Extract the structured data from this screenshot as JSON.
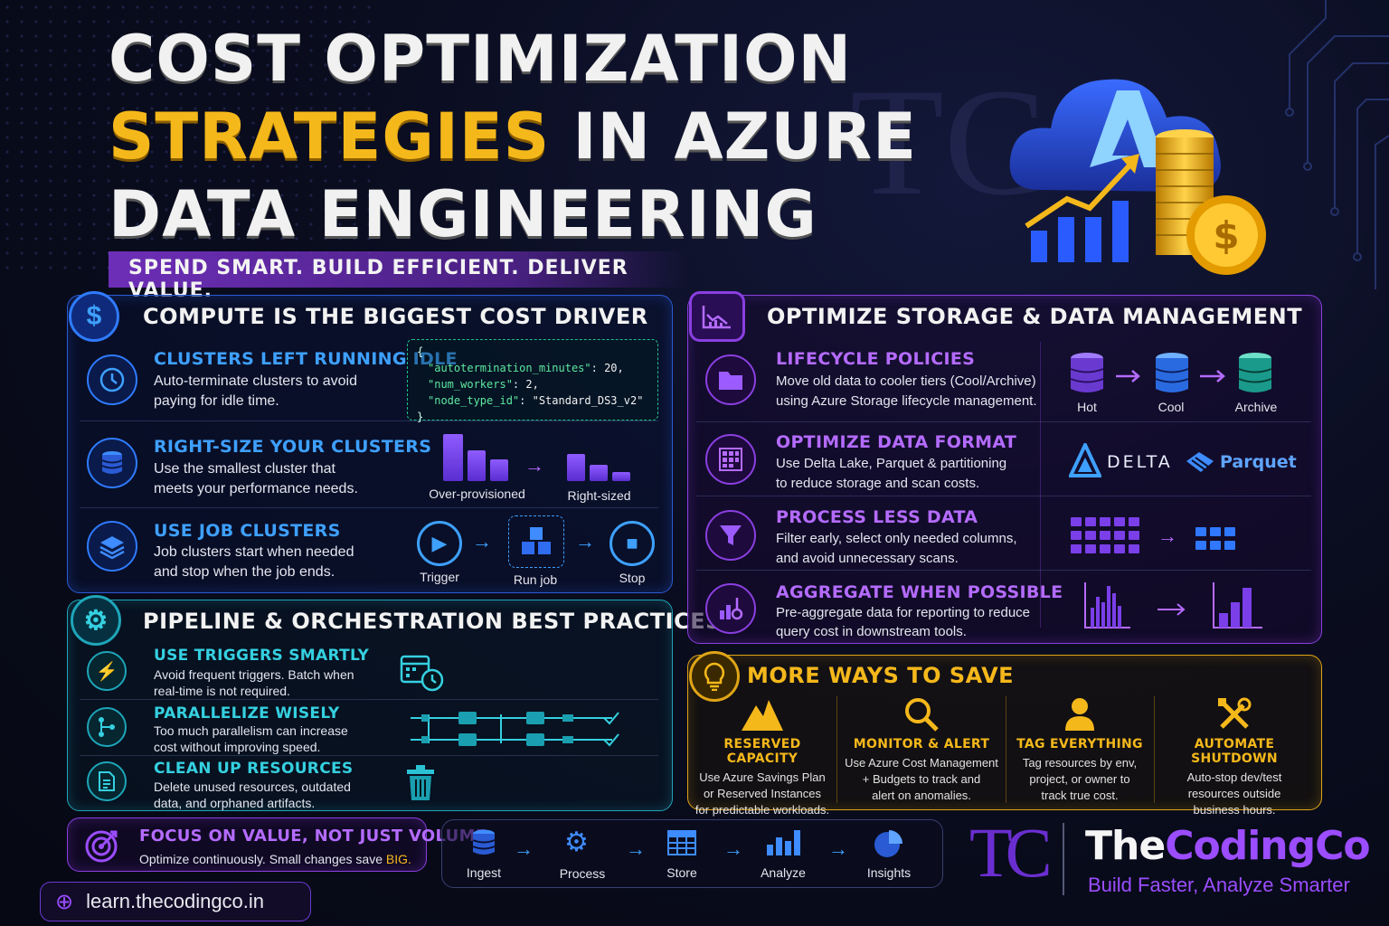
{
  "header": {
    "title_line1": "COST OPTIMIZATION",
    "title_line2_gold": "STRATEGIES",
    "title_line2_rest": " IN AZURE",
    "title_line3": "DATA ENGINEERING",
    "tagline": "SPEND SMART. BUILD EFFICIENT. DELIVER VALUE."
  },
  "compute": {
    "title": "COMPUTE IS THE BIGGEST COST DRIVER",
    "icon": "dollar-icon",
    "items": [
      {
        "head": "CLUSTERS LEFT RUNNING IDLE",
        "desc1": "Auto-terminate clusters to avoid",
        "desc2": "paying for idle time.",
        "icon": "clock-icon"
      },
      {
        "head": "RIGHT-SIZE YOUR CLUSTERS",
        "desc1": "Use the smallest cluster that",
        "desc2": "meets your performance needs.",
        "icon": "database-icon"
      },
      {
        "head": "USE JOB CLUSTERS",
        "desc1": "Job clusters start when needed",
        "desc2": "and stop when the job ends.",
        "icon": "layers-icon"
      }
    ],
    "code": {
      "open": "{",
      "l1_key": "\"autotermination_minutes\"",
      "l1_val": ": 20,",
      "l2_key": "\"num_workers\"",
      "l2_val": ": 2,",
      "l3_key": "\"node_type_id\"",
      "l3_val": ": \"Standard_DS3_v2\"",
      "close": "}"
    },
    "sizing_labels": [
      "Over-provisioned",
      "Right-sized"
    ],
    "job_labels": [
      "Trigger",
      "Run job",
      "Stop"
    ]
  },
  "pipeline": {
    "title": "PIPELINE & ORCHESTRATION BEST PRACTICES",
    "icon": "gear-icon",
    "items": [
      {
        "head": "USE TRIGGERS SMARTLY",
        "desc1": "Avoid frequent triggers. Batch when",
        "desc2": "real-time is not required.",
        "icon": "lightning-icon"
      },
      {
        "head": "PARALLELIZE WISELY",
        "desc1": "Too much parallelism can increase",
        "desc2": "cost without improving speed.",
        "icon": "branch-icon"
      },
      {
        "head": "CLEAN UP RESOURCES",
        "desc1": "Delete unused resources, outdated",
        "desc2": "data, and orphaned artifacts.",
        "icon": "document-icon"
      }
    ]
  },
  "storage": {
    "title": "OPTIMIZE STORAGE & DATA MANAGEMENT",
    "icon": "chart-icon",
    "items": [
      {
        "head": "LIFECYCLE POLICIES",
        "desc1": "Move old data to cooler tiers (Cool/Archive)",
        "desc2": "using Azure Storage lifecycle management.",
        "icon": "folder-icon"
      },
      {
        "head": "OPTIMIZE DATA FORMAT",
        "desc1": "Use Delta Lake, Parquet & partitioning",
        "desc2": "to reduce storage and scan costs.",
        "icon": "grid-icon"
      },
      {
        "head": "PROCESS LESS DATA",
        "desc1": "Filter early, select only needed columns,",
        "desc2": "and avoid unnecessary scans.",
        "icon": "filter-icon"
      },
      {
        "head": "AGGREGATE WHEN POSSIBLE",
        "desc1": "Pre-aggregate data for reporting to reduce",
        "desc2": "query cost in downstream tools.",
        "icon": "aggregate-icon"
      }
    ],
    "tiers": [
      "Hot",
      "Cool",
      "Archive"
    ],
    "formats": [
      "DELTA",
      "Parquet"
    ]
  },
  "more": {
    "title": "MORE WAYS TO SAVE",
    "icon": "lightbulb-icon",
    "items": [
      {
        "head": "RESERVED CAPACITY",
        "d1": "Use Azure Savings Plan",
        "d2": "or Reserved Instances",
        "d3": "for predictable workloads.",
        "icon": "mountain-icon"
      },
      {
        "head": "MONITOR & ALERT",
        "d1": "Use Azure Cost Management",
        "d2": "+ Budgets to track and",
        "d3": "alert on anomalies.",
        "icon": "magnifier-icon"
      },
      {
        "head": "TAG EVERYTHING",
        "d1": "Tag resources by env,",
        "d2": "project, or owner to",
        "d3": "track true cost.",
        "icon": "person-icon"
      },
      {
        "head": "AUTOMATE SHUTDOWN",
        "d1": "Auto-stop dev/test",
        "d2": "resources outside",
        "d3": "business hours.",
        "icon": "tools-icon"
      }
    ]
  },
  "focus": {
    "head": "FOCUS ON VALUE, NOT JUST VOLUME",
    "desc": "Optimize continuously. Small changes save ",
    "desc_gold": "BIG."
  },
  "flow": [
    "Ingest",
    "Process",
    "Store",
    "Analyze",
    "Insights"
  ],
  "brand": {
    "monogram": "TC",
    "name_white": "The",
    "name_purple1": "Coding",
    "name_purple2": "Co",
    "tagline": "Build Faster, Analyze Smarter"
  },
  "url": "learn.thecodingco.in",
  "colors": {
    "gold": "#f5b81b",
    "blue": "#3ea0ff",
    "teal": "#35d0e0",
    "purple": "#b46bff"
  }
}
